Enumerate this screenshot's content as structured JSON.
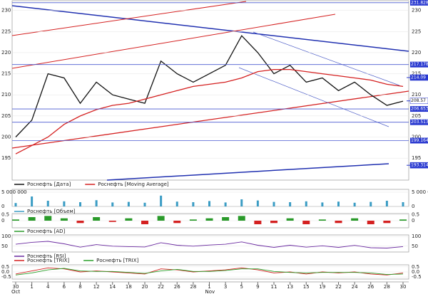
{
  "chart_data": [
    {
      "type": "line",
      "categories": [
        "30",
        "1",
        "4",
        "6",
        "8",
        "12",
        "14",
        "18",
        "20",
        "22",
        "26",
        "28",
        "1",
        "3",
        "5",
        "9",
        "11",
        "13",
        "15",
        "19",
        "22",
        "24",
        "26",
        "28",
        "30"
      ],
      "month_labels": [
        "Oct",
        "Nov"
      ],
      "series": [
        {
          "name": "Роснефть [Дата]",
          "color": "#111111",
          "values": [
            200,
            204,
            215,
            214,
            208,
            213,
            210,
            209,
            208,
            218,
            215,
            213,
            215,
            217,
            224,
            220,
            215,
            217,
            213,
            214,
            211,
            213,
            210,
            207.5,
            208.5
          ]
        },
        {
          "name": "Роснефть [Moving Average]",
          "color": "#d42020",
          "values": [
            196,
            198,
            200,
            203,
            205,
            206.5,
            207.5,
            208,
            209,
            210,
            211,
            212,
            212.5,
            213,
            214,
            215.5,
            216,
            216,
            215.5,
            215,
            214.5,
            214,
            213.5,
            212.5,
            212
          ]
        }
      ],
      "ylim": [
        189.8,
        232.3
      ],
      "yticks": [
        195,
        200,
        205,
        210,
        215,
        220,
        225,
        230
      ],
      "levels": [
        231.828,
        217.178,
        206.653,
        203.513,
        199.164
      ],
      "markers": [
        214.09,
        208.57,
        193.314
      ]
    },
    {
      "type": "bar",
      "series": [
        {
          "name": "Роснефть [Объем]",
          "color": "#3a9cc4",
          "values": [
            1200000,
            3500000,
            2000000,
            1800000,
            1500000,
            2200000,
            1400000,
            1600000,
            1300000,
            3800000,
            1700000,
            1500000,
            1900000,
            1400000,
            2500000,
            2100000,
            1600000,
            1500000,
            1800000,
            1400000,
            1700000,
            1300000,
            1600000,
            2000000,
            1500000
          ]
        }
      ],
      "ylim": [
        0,
        6000000
      ],
      "yticks": [
        0,
        {
          "value": 5000000,
          "label": "5 000 000"
        }
      ]
    },
    {
      "type": "bar",
      "series": [
        {
          "name": "Роснефть [AD]",
          "color": "#2a9a2a",
          "values": [
            0.1,
            0.3,
            0.4,
            0.2,
            -0.2,
            0.3,
            -0.1,
            0.2,
            -0.3,
            0.4,
            -0.2,
            0.1,
            0.2,
            0.3,
            0.4,
            -0.3,
            -0.2,
            0.2,
            -0.3,
            0.1,
            -0.2,
            0.2,
            -0.3,
            -0.2,
            0.1
          ]
        }
      ],
      "negative_color": "#d42020",
      "ylim": [
        -0.6,
        0.6
      ],
      "yticks": [
        0,
        0.5
      ]
    },
    {
      "type": "line",
      "series": [
        {
          "name": "Роснефть [RSI]",
          "color": "#6a2aa0",
          "values": [
            60,
            70,
            75,
            62,
            45,
            58,
            50,
            48,
            46,
            68,
            55,
            50,
            56,
            60,
            72,
            55,
            44,
            55,
            45,
            52,
            44,
            54,
            42,
            40,
            48
          ]
        }
      ],
      "ylim": [
        20,
        108
      ],
      "yticks": [
        50,
        100
      ]
    },
    {
      "type": "line",
      "series": [
        {
          "name": "Роснефть [TRIX]",
          "color": "#d42020",
          "values": [
            -0.2,
            0.1,
            0.4,
            0.3,
            0,
            0.1,
            0,
            -0.1,
            -0.2,
            0.3,
            0.2,
            0,
            0.1,
            0.2,
            0.4,
            0.2,
            -0.1,
            0,
            -0.2,
            0,
            -0.1,
            0,
            -0.2,
            -0.3,
            -0.1
          ]
        },
        {
          "name": "Роснефть [TRIX]",
          "color": "#2aa02a",
          "values": [
            -0.3,
            -0.1,
            0.2,
            0.35,
            0.1,
            0.05,
            0.05,
            -0.05,
            -0.15,
            0.1,
            0.25,
            0.05,
            0.05,
            0.15,
            0.3,
            0.3,
            0.05,
            -0.05,
            -0.1,
            -0.05,
            -0.05,
            -0.05,
            -0.1,
            -0.25,
            -0.2
          ]
        }
      ],
      "ylim": [
        -0.7,
        0.7
      ],
      "yticks": [
        -0.5,
        {
          "value": 0,
          "label": "0.0"
        },
        0.5
      ]
    }
  ]
}
